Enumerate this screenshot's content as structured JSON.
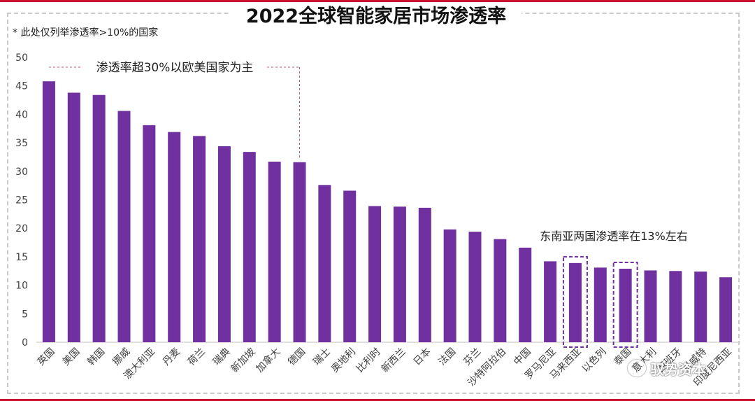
{
  "page": {
    "title": "2022全球智能家居市场渗透率",
    "note": "* 此处仅列举渗透率>10%的国家"
  },
  "watermark": {
    "text": "驭势资本",
    "icon": "wechat-icon"
  },
  "colors": {
    "bar": "#7030a0",
    "accent": "#c8102e",
    "callout_line": "#c0506a"
  },
  "chart_data": {
    "type": "bar",
    "title": "2022全球智能家居市场渗透率",
    "xlabel": "",
    "ylabel": "",
    "ylim": [
      0,
      50
    ],
    "yticks": [
      0,
      5,
      10,
      15,
      20,
      25,
      30,
      35,
      40,
      45,
      50
    ],
    "grid": false,
    "categories": [
      "英国",
      "美国",
      "韩国",
      "挪威",
      "澳大利亚",
      "丹麦",
      "荷兰",
      "瑞典",
      "新加坡",
      "加拿大",
      "德国",
      "瑞士",
      "奥地利",
      "比利时",
      "新西兰",
      "日本",
      "法国",
      "芬兰",
      "沙特阿拉伯",
      "中国",
      "罗马尼亚",
      "马来西亚",
      "以色列",
      "泰国",
      "意大利",
      "西班牙",
      "科威特",
      "印度尼西亚"
    ],
    "values": [
      45.8,
      43.8,
      43.4,
      40.6,
      38.1,
      36.9,
      36.2,
      34.4,
      33.4,
      31.7,
      31.6,
      27.6,
      26.6,
      23.9,
      23.8,
      23.6,
      19.8,
      19.4,
      18.1,
      16.6,
      14.2,
      13.9,
      13.1,
      12.9,
      12.6,
      12.5,
      12.4,
      11.4
    ],
    "annotations": [
      {
        "text": "渗透率超30%以欧美国家为主",
        "from_index": 0,
        "to_index": 10
      },
      {
        "text": "东南亚两国渗透率在13%左右",
        "highlight_indices": [
          21,
          23
        ]
      }
    ]
  }
}
